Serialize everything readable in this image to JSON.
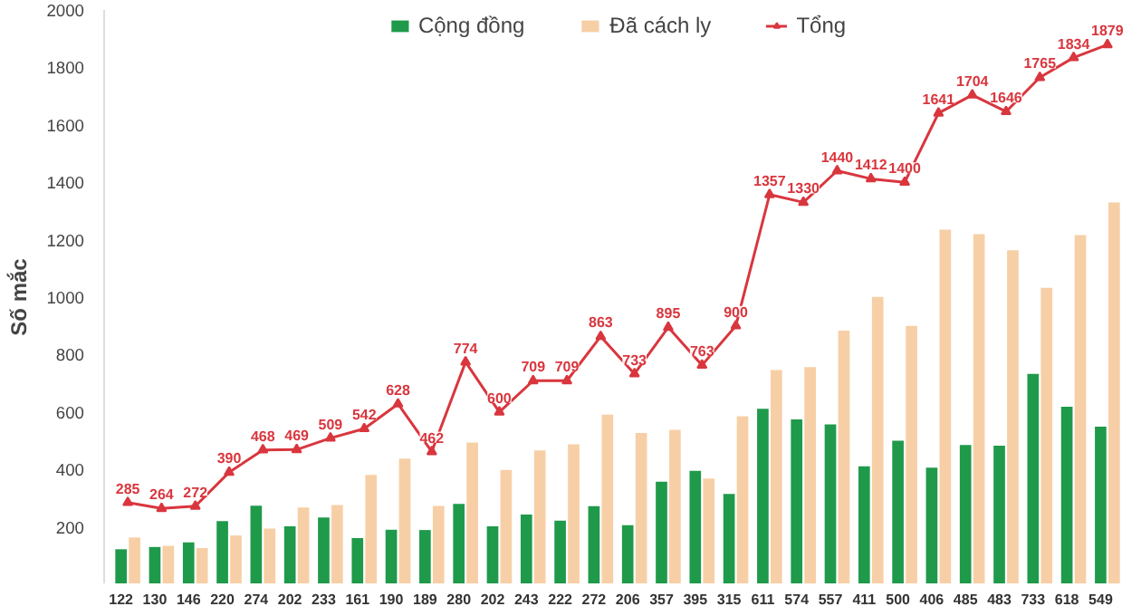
{
  "chart_data": {
    "type": "bar",
    "ylabel": "Số mắc",
    "categories": [
      null,
      null,
      null,
      null,
      null,
      null,
      null,
      null,
      null,
      null,
      null,
      null,
      null,
      null,
      null,
      null,
      null,
      null,
      null,
      null,
      null,
      null,
      null,
      null,
      null,
      null,
      null,
      null,
      null,
      null
    ],
    "series": [
      {
        "name": "Cộng đồng",
        "color": "#1f9a4a",
        "data_labels": true,
        "values": [
          122,
          130,
          146,
          220,
          274,
          202,
          233,
          161,
          190,
          189,
          280,
          202,
          243,
          222,
          272,
          206,
          357,
          395,
          315,
          611,
          574,
          557,
          411,
          500,
          406,
          485,
          483,
          733,
          618,
          549
        ]
      },
      {
        "name": "Đã cách ly",
        "color": "#f7cfa6",
        "values": [
          163,
          134,
          126,
          170,
          194,
          267,
          276,
          381,
          438,
          273,
          494,
          398,
          466,
          487,
          591,
          527,
          538,
          368,
          585,
          746,
          756,
          883,
          1001,
          900,
          1235,
          1219,
          1163,
          1032,
          1216,
          1330
        ]
      },
      {
        "name": "Tổng",
        "type": "line",
        "color": "#d9363e",
        "marker": "triangle",
        "data_labels": true,
        "values": [
          285,
          264,
          272,
          390,
          468,
          469,
          509,
          542,
          628,
          462,
          774,
          600,
          709,
          709,
          863,
          733,
          895,
          763,
          900,
          1357,
          1330,
          1440,
          1412,
          1400,
          1641,
          1704,
          1646,
          1765,
          1834,
          1879
        ]
      }
    ],
    "ylim": [
      0,
      2000
    ],
    "yticks": [
      200,
      400,
      600,
      800,
      1000,
      1200,
      1400,
      1600,
      1800,
      2000
    ],
    "grid": false,
    "legend": "top"
  }
}
